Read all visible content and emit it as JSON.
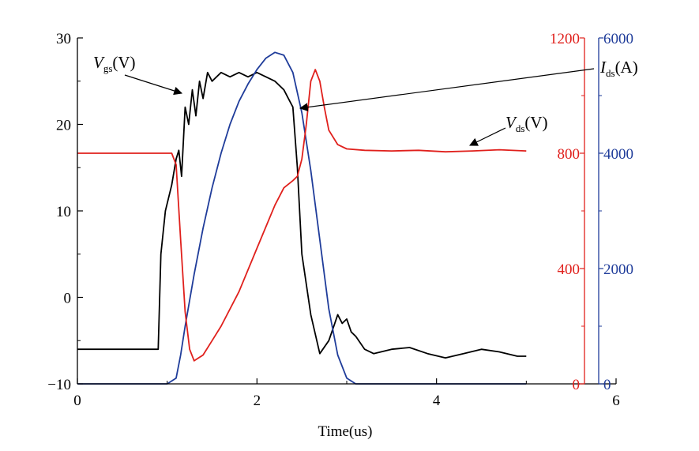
{
  "chart_data": {
    "type": "line",
    "xlabel": "Time(us)",
    "x_ticks": [
      "0",
      "2",
      "4",
      "6"
    ],
    "xlim": [
      0,
      6
    ],
    "axes": {
      "left": {
        "ticks": [
          "30",
          "20",
          "10",
          "0",
          "−10"
        ],
        "ylim": [
          -10,
          30
        ],
        "color": "#000000"
      },
      "right1": {
        "ticks": [
          "1200",
          "800",
          "400",
          "0"
        ],
        "ylim": [
          0,
          1200
        ],
        "color": "#e0201c"
      },
      "right2": {
        "ticks": [
          "6000",
          "4000",
          "2000",
          "0"
        ],
        "ylim": [
          0,
          6000
        ],
        "color": "#1f3c9a"
      }
    },
    "series": [
      {
        "key": "vgs",
        "axis": "left",
        "color": "#000000",
        "x": [
          0,
          0.9,
          0.93,
          0.98,
          1.05,
          1.1,
          1.13,
          1.16,
          1.2,
          1.24,
          1.28,
          1.32,
          1.36,
          1.4,
          1.45,
          1.5,
          1.6,
          1.7,
          1.8,
          1.9,
          2.0,
          2.1,
          2.2,
          2.3,
          2.35,
          2.4,
          2.45,
          2.5,
          2.6,
          2.7,
          2.8,
          2.85,
          2.9,
          2.95,
          3.0,
          3.05,
          3.1,
          3.2,
          3.3,
          3.5,
          3.7,
          3.9,
          4.1,
          4.3,
          4.5,
          4.7,
          4.9,
          5.0
        ],
        "y": [
          -6,
          -6,
          5,
          10,
          13,
          16,
          17,
          14,
          22,
          20,
          24,
          21,
          25,
          23,
          26,
          25,
          26,
          25.5,
          26,
          25.5,
          26,
          25.5,
          25,
          24,
          23,
          22,
          15,
          5,
          -2,
          -6.5,
          -5,
          -3.5,
          -2,
          -3,
          -2.5,
          -4,
          -4.5,
          -6,
          -6.5,
          -6,
          -5.8,
          -6.5,
          -7,
          -6.5,
          -6,
          -6.3,
          -6.8,
          -6.8
        ]
      },
      {
        "key": "ids",
        "axis": "right2",
        "color": "#1f3c9a",
        "x": [
          0,
          1.0,
          1.1,
          1.15,
          1.2,
          1.3,
          1.4,
          1.5,
          1.6,
          1.7,
          1.8,
          1.9,
          2.0,
          2.1,
          2.2,
          2.3,
          2.4,
          2.5,
          2.6,
          2.7,
          2.8,
          2.9,
          3.0,
          3.1,
          5.0
        ],
        "y": [
          0,
          0,
          100,
          500,
          1000,
          1900,
          2700,
          3400,
          4000,
          4500,
          4900,
          5200,
          5450,
          5650,
          5750,
          5700,
          5400,
          4700,
          3700,
          2500,
          1300,
          500,
          100,
          0,
          0
        ]
      },
      {
        "key": "vds",
        "axis": "right1",
        "color": "#e0201c",
        "x": [
          0,
          1.05,
          1.1,
          1.15,
          1.2,
          1.25,
          1.3,
          1.4,
          1.5,
          1.6,
          1.8,
          2.0,
          2.2,
          2.3,
          2.4,
          2.45,
          2.5,
          2.55,
          2.6,
          2.65,
          2.7,
          2.75,
          2.8,
          2.9,
          3.0,
          3.2,
          3.5,
          3.8,
          4.1,
          4.4,
          4.7,
          5.0
        ],
        "y": [
          800,
          800,
          760,
          500,
          250,
          120,
          80,
          100,
          150,
          200,
          320,
          470,
          620,
          680,
          705,
          720,
          780,
          900,
          1050,
          1090,
          1050,
          960,
          880,
          830,
          815,
          810,
          808,
          810,
          805,
          808,
          812,
          808
        ]
      }
    ],
    "annotations": [
      {
        "main": "V",
        "sub": "gs",
        "unit": "(V)"
      },
      {
        "main": "I",
        "sub": "ds",
        "unit": "(A)"
      },
      {
        "main": "V",
        "sub": "ds",
        "unit": "(V)"
      }
    ]
  }
}
